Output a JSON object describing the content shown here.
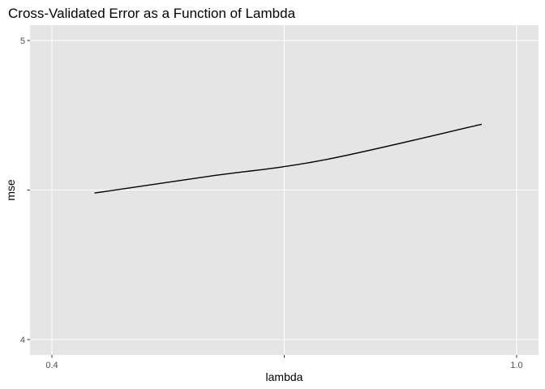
{
  "chart_data": {
    "type": "line",
    "title": "Cross-Validated Error as a Function of Lambda",
    "xlabel": "lambda",
    "ylabel": "mse",
    "xlim": [
      0.4,
      1.0
    ],
    "ylim": [
      4,
      5
    ],
    "x_ticks": [
      0.4,
      0.7,
      1.0
    ],
    "x_tick_labels": [
      "0.4",
      "",
      "1.0"
    ],
    "y_ticks": [
      4,
      4.5,
      5
    ],
    "y_tick_labels": [
      "4",
      "",
      "5"
    ],
    "grid": true,
    "series": [
      {
        "x": [
          0.455,
          0.6,
          0.75,
          0.955
        ],
        "y": [
          4.49,
          4.545,
          4.6,
          4.72
        ],
        "color": "#000000"
      }
    ]
  },
  "colors": {
    "panel_background": "#e5e5e5",
    "grid_major": "#ffffff",
    "tick_text": "#4d4d4d",
    "tick_mark": "#333333"
  }
}
